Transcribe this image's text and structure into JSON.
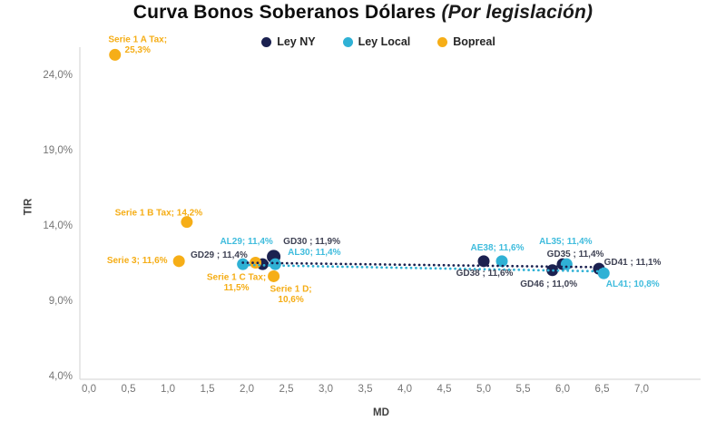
{
  "title": {
    "main": "Curva Bonos Soberanos Dólares",
    "sub": " (Por legislación)"
  },
  "legend": [
    {
      "label": "Ley NY",
      "color": "#1b2150"
    },
    {
      "label": "Ley Local",
      "color": "#2fb1d5"
    },
    {
      "label": "Bopreal",
      "color": "#f6ae17"
    }
  ],
  "colors": {
    "axis_line": "#d9d9d9",
    "tick_text": "#757575",
    "ley_ny": "#1b2150",
    "ley_local": "#2fb1d5",
    "bopreal": "#f6ae17"
  },
  "chart_data": {
    "type": "scatter",
    "title": "Curva Bonos Soberanos Dólares (Por legislación)",
    "xlabel": "MD",
    "ylabel": "TIR",
    "xlim": [
      0,
      7
    ],
    "ylim": [
      4,
      26
    ],
    "grid": false,
    "legend_position": "top",
    "x_ticks": [
      {
        "label": "0,0",
        "value": 0.0
      },
      {
        "label": "0,5",
        "value": 0.5
      },
      {
        "label": "1,0",
        "value": 1.0
      },
      {
        "label": "1,5",
        "value": 1.5
      },
      {
        "label": "2,0",
        "value": 2.0
      },
      {
        "label": "2,5",
        "value": 2.5
      },
      {
        "label": "3,0",
        "value": 3.0
      },
      {
        "label": "3,5",
        "value": 3.5
      },
      {
        "label": "4,0",
        "value": 4.0
      },
      {
        "label": "4,5",
        "value": 4.5
      },
      {
        "label": "5,0",
        "value": 5.0
      },
      {
        "label": "5,5",
        "value": 5.5
      },
      {
        "label": "6,0",
        "value": 6.0
      },
      {
        "label": "6,5",
        "value": 6.5
      },
      {
        "label": "7,0",
        "value": 7.0
      }
    ],
    "y_ticks": [
      {
        "label": "24,0%",
        "value": 24
      },
      {
        "label": "19,0%",
        "value": 19
      },
      {
        "label": "14,0%",
        "value": 14
      },
      {
        "label": "9,0%",
        "value": 9
      },
      {
        "label": "4,0%",
        "value": 4
      }
    ],
    "series": [
      {
        "name": "Ley NY",
        "color": "#1b2150",
        "label_color": "#3f4254",
        "points": [
          {
            "id": "GD29",
            "label": [
              "GD29 ; 11,4%"
            ],
            "md": 2.2,
            "tir": 11.4,
            "label_dx": -48,
            "label_dy": -7
          },
          {
            "id": "GD30",
            "label": [
              "GD30 ; 11,9%"
            ],
            "md": 2.34,
            "tir": 11.9,
            "r": 7.5,
            "label_dx": 42,
            "label_dy": -14
          },
          {
            "id": "GD38",
            "label": [
              "GD38 ; 11,6%"
            ],
            "md": 5.0,
            "tir": 11.6,
            "label_dx": 1,
            "label_dy": 16
          },
          {
            "id": "GD35",
            "label": [
              "GD35 ; 11,4%"
            ],
            "md": 6.0,
            "tir": 11.4,
            "label_dx": 14,
            "label_dy": -8
          },
          {
            "id": "GD46",
            "label": [
              "GD46 ; 11,0%"
            ],
            "md": 5.87,
            "tir": 11.0,
            "label_dx": -4,
            "label_dy": 18
          },
          {
            "id": "GD41",
            "label": [
              "GD41 ; 11,1%"
            ],
            "md": 6.46,
            "tir": 11.1,
            "label_dx": 37,
            "label_dy": -4
          }
        ]
      },
      {
        "name": "Ley Local",
        "color": "#2fb1d5",
        "label_color": "#3fbcdd",
        "points": [
          {
            "id": "AL29",
            "label": [
              "AL29; 11,4%"
            ],
            "md": 1.95,
            "tir": 11.4,
            "label_dx": 4,
            "label_dy": -22
          },
          {
            "id": "AL30",
            "label": [
              "AL30; 11,4%"
            ],
            "md": 2.36,
            "tir": 11.4,
            "label_dx": 43,
            "label_dy": -10
          },
          {
            "id": "AE38",
            "label": [
              "AE38; 11,6%"
            ],
            "md": 5.23,
            "tir": 11.6,
            "label_dx": -5,
            "label_dy": -12
          },
          {
            "id": "AL35",
            "label": [
              "AL35; 11,4%"
            ],
            "md": 6.05,
            "tir": 11.4,
            "label_dx": -1,
            "label_dy": -22
          },
          {
            "id": "AL41",
            "label": [
              "AL41; 10,8%"
            ],
            "md": 6.52,
            "tir": 10.8,
            "label_dx": 32,
            "label_dy": 15
          }
        ]
      },
      {
        "name": "Bopreal",
        "color": "#f6ae17",
        "label_color": "#f5ad15",
        "points": [
          {
            "id": "Serie1ATax",
            "label": [
              "Serie 1 A Tax;",
              "25,3%"
            ],
            "md": 0.33,
            "tir": 25.3,
            "label_dx": 25,
            "label_dy": -14
          },
          {
            "id": "Serie1BTax",
            "label": [
              "Serie 1 B Tax; 14,2%"
            ],
            "md": 1.24,
            "tir": 14.2,
            "label_dx": -31,
            "label_dy": -7
          },
          {
            "id": "Serie3",
            "label": [
              "Serie 3; 11,6%"
            ],
            "md": 1.14,
            "tir": 11.6,
            "label_dx": -46,
            "label_dy": 2
          },
          {
            "id": "Serie1CTax",
            "label": [
              "Serie 1 C Tax;",
              "11,5%"
            ],
            "md": 2.11,
            "tir": 11.5,
            "label_dx": -21,
            "label_dy": 19
          },
          {
            "id": "Serie1D",
            "label": [
              "Serie 1 D;",
              "10,6%"
            ],
            "md": 2.34,
            "tir": 10.6,
            "label_dx": 19,
            "label_dy": 17
          }
        ]
      }
    ],
    "trendlines": [
      {
        "series": "Ley Local",
        "color": "#2fb1d5",
        "from_md": 1.97,
        "from_tir": 11.35,
        "to_md": 6.55,
        "to_tir": 10.92
      },
      {
        "series": "Ley NY",
        "color": "#1b2150",
        "from_md": 1.95,
        "from_tir": 11.5,
        "to_md": 6.5,
        "to_tir": 11.2
      }
    ]
  }
}
